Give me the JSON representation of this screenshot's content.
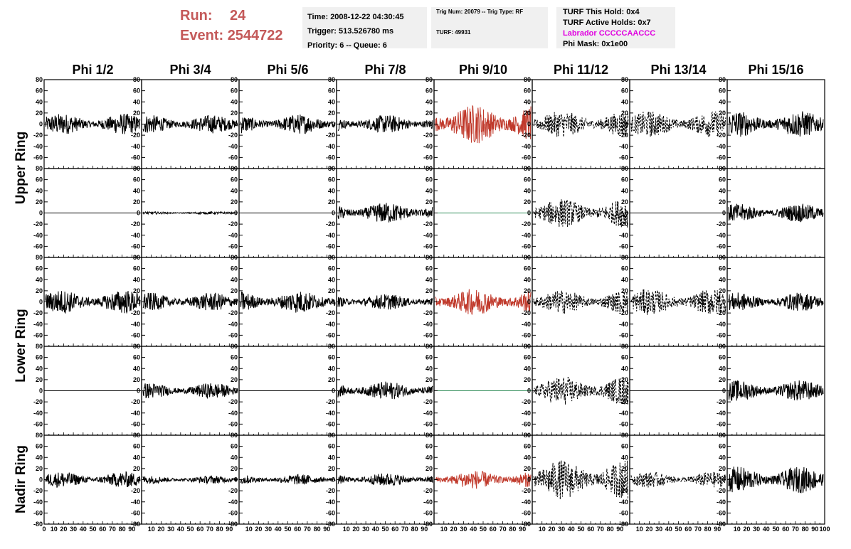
{
  "header": {
    "run_label": "Run:",
    "run_value": "24",
    "event_label": "Event:",
    "event_value": "2544722"
  },
  "time_box": {
    "time": "Time: 2008-12-22 04:30:45",
    "trigger": "Trigger: 513.526780 ms",
    "priority": "Priority: 6 -- Queue: 6"
  },
  "trig_box": {
    "trig": "Trig Num: 20079 -- Trig Type: RF",
    "turf": "TURF: 49931"
  },
  "turf_box": {
    "this_hold": "TURF This Hold: 0x4",
    "active_holds": "TURF Active Holds: 0x7",
    "labrador": "Labrador CCCCCAACCC",
    "phi_mask": "Phi Mask: 0x1e00"
  },
  "colors": {
    "header_red": "#c45a5a",
    "highlight_red": "#c0392b",
    "flat_green": "#2e8b57",
    "magenta": "#e000e0",
    "box_bg": "#f0f0f0"
  },
  "chart_data": {
    "type": "line",
    "columns": [
      "Phi 1/2",
      "Phi 3/4",
      "Phi 5/6",
      "Phi 7/8",
      "Phi 9/10",
      "Phi 11/12",
      "Phi 13/14",
      "Phi 15/16"
    ],
    "ring_labels": [
      "Upper Ring",
      "Lower Ring",
      "Nadir Ring"
    ],
    "xlim": [
      0,
      100
    ],
    "ylim": [
      -80,
      80
    ],
    "yticks": [
      -80,
      -60,
      -40,
      -20,
      0,
      20,
      40,
      60,
      80
    ],
    "xtick_labels": [
      "0",
      "10",
      "20",
      "30",
      "40",
      "50",
      "60",
      "70",
      "80",
      "90",
      "100"
    ],
    "panels": [
      [
        {
          "style": "solid",
          "color": "#000",
          "amp": 16
        },
        {
          "style": "solid",
          "color": "#000",
          "amp": 14
        },
        {
          "style": "solid",
          "color": "#000",
          "amp": 15
        },
        {
          "style": "solid",
          "color": "#000",
          "amp": 14
        },
        {
          "style": "solid",
          "color": "#c0392b",
          "amp": 30
        },
        {
          "style": "dashed",
          "color": "#000",
          "amp": 20
        },
        {
          "style": "dashed",
          "color": "#000",
          "amp": 20
        },
        {
          "style": "solid",
          "color": "#000",
          "amp": 20
        }
      ],
      [
        {
          "style": "flat",
          "color": "#000",
          "amp": 0
        },
        {
          "style": "solid",
          "color": "#000",
          "amp": 2
        },
        {
          "style": "flat",
          "color": "#000",
          "amp": 0
        },
        {
          "style": "solid",
          "color": "#000",
          "amp": 16
        },
        {
          "style": "flat",
          "color": "#2e8b57",
          "amp": 0
        },
        {
          "style": "dashed",
          "color": "#000",
          "amp": 22
        },
        {
          "style": "flat",
          "color": "#000",
          "amp": 0
        },
        {
          "style": "solid",
          "color": "#000",
          "amp": 14
        }
      ],
      [
        {
          "style": "solid",
          "color": "#000",
          "amp": 18
        },
        {
          "style": "solid",
          "color": "#000",
          "amp": 14
        },
        {
          "style": "solid",
          "color": "#000",
          "amp": 17
        },
        {
          "style": "solid",
          "color": "#000",
          "amp": 12
        },
        {
          "style": "solid",
          "color": "#c0392b",
          "amp": 20
        },
        {
          "style": "dashed",
          "color": "#000",
          "amp": 18
        },
        {
          "style": "dashed",
          "color": "#000",
          "amp": 20
        },
        {
          "style": "solid",
          "color": "#000",
          "amp": 14
        }
      ],
      [
        {
          "style": "flat",
          "color": "#000",
          "amp": 0
        },
        {
          "style": "solid",
          "color": "#000",
          "amp": 12
        },
        {
          "style": "flat",
          "color": "#000",
          "amp": 0
        },
        {
          "style": "solid",
          "color": "#000",
          "amp": 14
        },
        {
          "style": "flat",
          "color": "#2e8b57",
          "amp": 0
        },
        {
          "style": "dashed",
          "color": "#000",
          "amp": 22
        },
        {
          "style": "flat",
          "color": "#000",
          "amp": 0
        },
        {
          "style": "solid",
          "color": "#000",
          "amp": 16
        }
      ],
      [
        {
          "style": "solid",
          "color": "#000",
          "amp": 12
        },
        {
          "style": "solid",
          "color": "#000",
          "amp": 6
        },
        {
          "style": "solid",
          "color": "#000",
          "amp": 8
        },
        {
          "style": "solid",
          "color": "#000",
          "amp": 10
        },
        {
          "style": "solid",
          "color": "#c0392b",
          "amp": 14
        },
        {
          "style": "dashed",
          "color": "#000",
          "amp": 30
        },
        {
          "style": "dashed",
          "color": "#000",
          "amp": 12
        },
        {
          "style": "solid",
          "color": "#000",
          "amp": 20
        }
      ]
    ]
  }
}
